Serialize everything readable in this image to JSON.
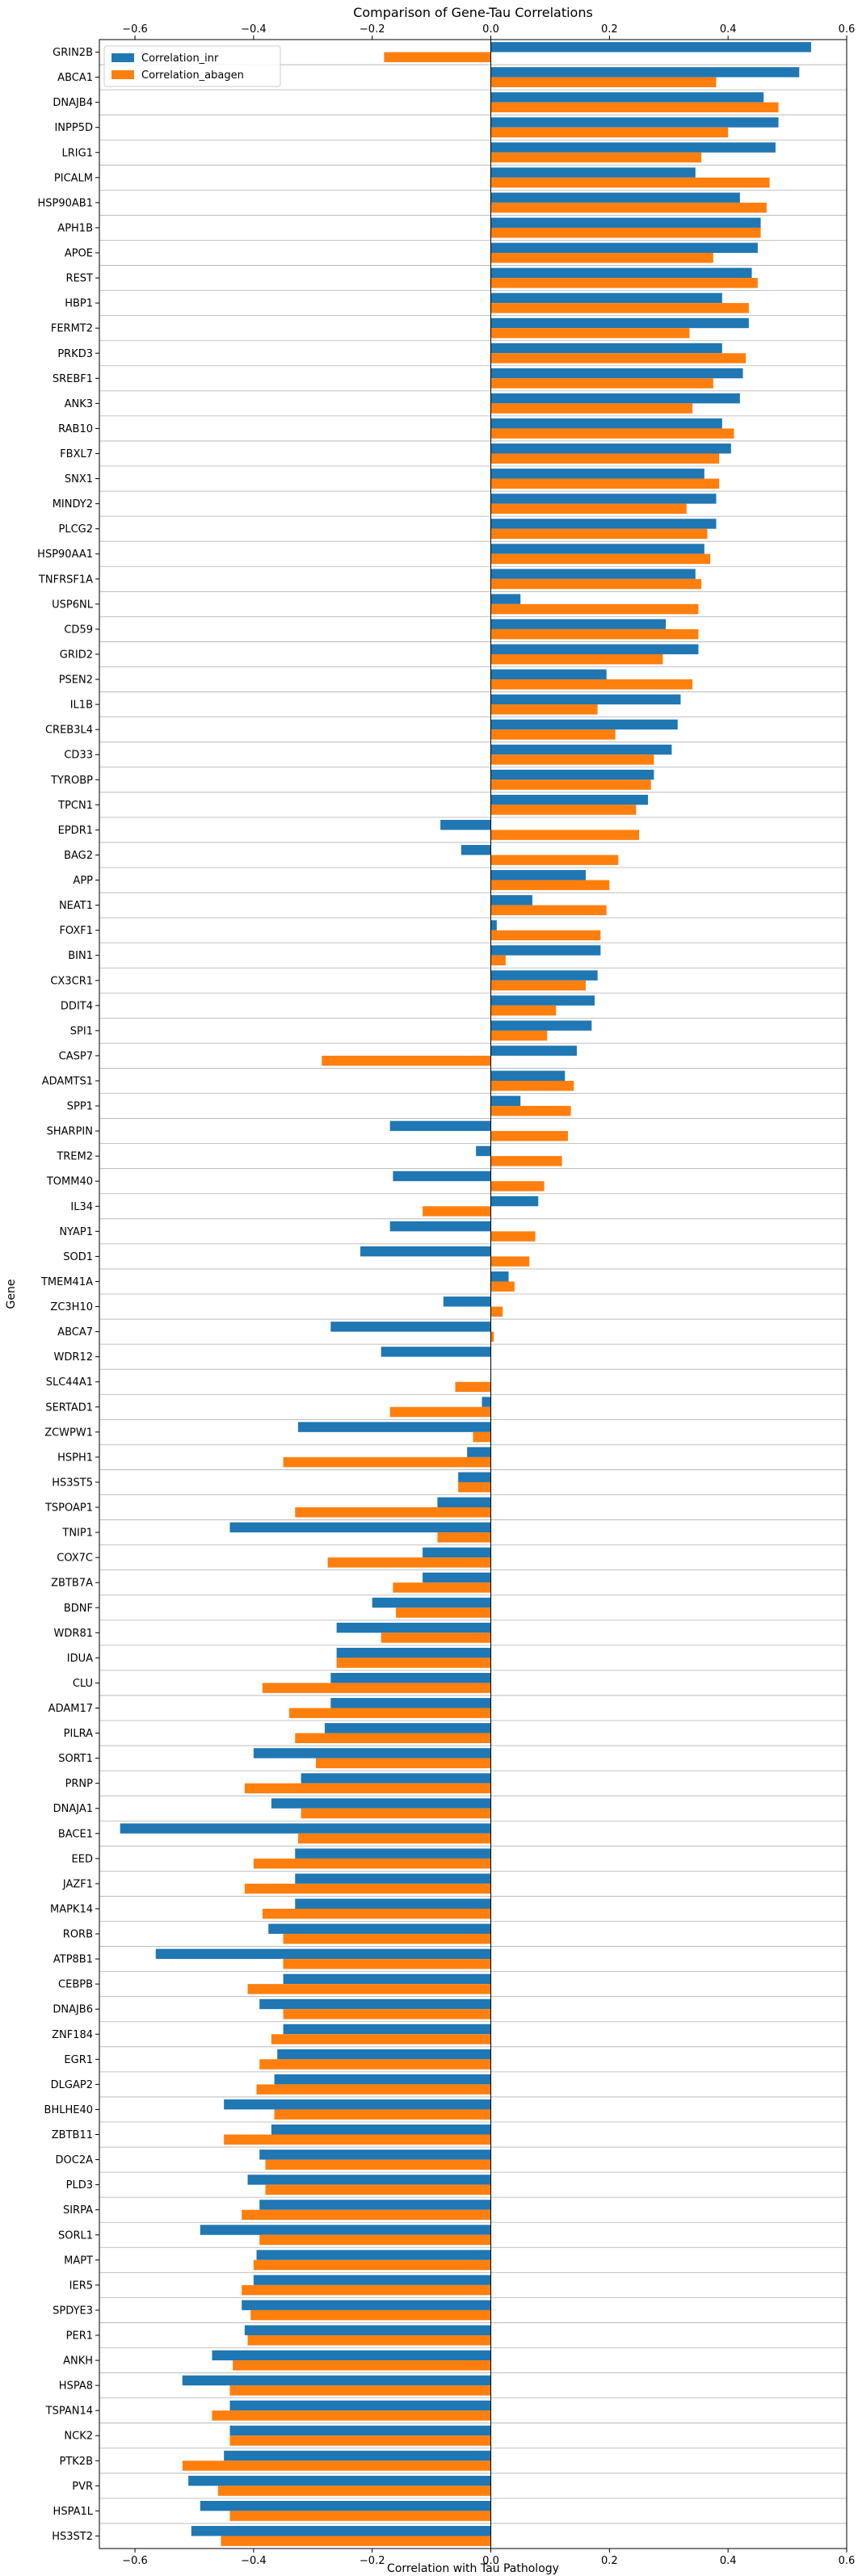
{
  "chart_data": {
    "type": "bar",
    "orientation": "horizontal",
    "title": "Comparison of Gene-Tau Correlations",
    "xlabel": "Correlation with Tau Pathology",
    "ylabel": "Gene",
    "xlim": [
      -0.66,
      0.6
    ],
    "xticks": [
      -0.6,
      -0.4,
      -0.2,
      0.0,
      0.2,
      0.4,
      0.6
    ],
    "xtick_labels": [
      "−0.6",
      "−0.4",
      "−0.2",
      "0.0",
      "0.2",
      "0.4",
      "0.6"
    ],
    "xticks_top_and_bottom": true,
    "legend_position": "top-left",
    "categories": [
      "GRIN2B",
      "ABCA1",
      "DNAJB4",
      "INPP5D",
      "LRIG1",
      "PICALM",
      "HSP90AB1",
      "APH1B",
      "APOE",
      "REST",
      "HBP1",
      "FERMT2",
      "PRKD3",
      "SREBF1",
      "ANK3",
      "RAB10",
      "FBXL7",
      "SNX1",
      "MINDY2",
      "PLCG2",
      "HSP90AA1",
      "TNFRSF1A",
      "USP6NL",
      "CD59",
      "GRID2",
      "PSEN2",
      "IL1B",
      "CREB3L4",
      "CD33",
      "TYROBP",
      "TPCN1",
      "EPDR1",
      "BAG2",
      "APP",
      "NEAT1",
      "FOXF1",
      "BIN1",
      "CX3CR1",
      "DDIT4",
      "SPI1",
      "CASP7",
      "ADAMTS1",
      "SPP1",
      "SHARPIN",
      "TREM2",
      "TOMM40",
      "IL34",
      "NYAP1",
      "SOD1",
      "TMEM41A",
      "ZC3H10",
      "ABCA7",
      "WDR12",
      "SLC44A1",
      "SERTAD1",
      "ZCWPW1",
      "HSPH1",
      "HS3ST5",
      "TSPOAP1",
      "TNIP1",
      "COX7C",
      "ZBTB7A",
      "BDNF",
      "WDR81",
      "IDUA",
      "CLU",
      "ADAM17",
      "PILRA",
      "SORT1",
      "PRNP",
      "DNAJA1",
      "BACE1",
      "EED",
      "JAZF1",
      "MAPK14",
      "RORB",
      "ATP8B1",
      "CEBPB",
      "DNAJB6",
      "ZNF184",
      "EGR1",
      "DLGAP2",
      "BHLHE40",
      "ZBTB11",
      "DOC2A",
      "PLD3",
      "SIRPA",
      "SORL1",
      "MAPT",
      "IER5",
      "SPDYE3",
      "PER1",
      "ANKH",
      "HSPA8",
      "TSPAN14",
      "NCK2",
      "PTK2B",
      "PVR",
      "HSPA1L",
      "HS3ST2"
    ],
    "series": [
      {
        "name": "Correlation_inr",
        "color": "#1f77b4",
        "values": [
          0.54,
          0.52,
          0.46,
          0.485,
          0.48,
          0.345,
          0.42,
          0.455,
          0.45,
          0.44,
          0.39,
          0.435,
          0.39,
          0.425,
          0.42,
          0.39,
          0.405,
          0.36,
          0.38,
          0.38,
          0.36,
          0.345,
          0.05,
          0.295,
          0.35,
          0.195,
          0.32,
          0.315,
          0.305,
          0.275,
          0.265,
          -0.085,
          -0.05,
          0.16,
          0.07,
          0.01,
          0.185,
          0.18,
          0.175,
          0.17,
          0.145,
          0.125,
          0.05,
          -0.17,
          -0.025,
          -0.165,
          0.08,
          -0.17,
          -0.22,
          0.03,
          -0.08,
          -0.27,
          -0.185,
          0.0,
          -0.015,
          -0.325,
          -0.04,
          -0.055,
          -0.09,
          -0.44,
          -0.115,
          -0.115,
          -0.2,
          -0.26,
          -0.26,
          -0.27,
          -0.27,
          -0.28,
          -0.4,
          -0.32,
          -0.37,
          -0.625,
          -0.33,
          -0.33,
          -0.33,
          -0.375,
          -0.565,
          -0.35,
          -0.39,
          -0.35,
          -0.36,
          -0.365,
          -0.45,
          -0.37,
          -0.39,
          -0.41,
          -0.39,
          -0.49,
          -0.395,
          -0.4,
          -0.42,
          -0.415,
          -0.47,
          -0.52,
          -0.44,
          -0.44,
          -0.45,
          -0.51,
          -0.49,
          -0.505
        ]
      },
      {
        "name": "Correlation_abagen",
        "color": "#ff7f0e",
        "values": [
          -0.18,
          0.38,
          0.485,
          0.4,
          0.355,
          0.47,
          0.465,
          0.455,
          0.375,
          0.45,
          0.435,
          0.335,
          0.43,
          0.375,
          0.34,
          0.41,
          0.385,
          0.385,
          0.33,
          0.365,
          0.37,
          0.355,
          0.35,
          0.35,
          0.29,
          0.34,
          0.18,
          0.21,
          0.275,
          0.27,
          0.245,
          0.25,
          0.215,
          0.2,
          0.195,
          0.185,
          0.025,
          0.16,
          0.11,
          0.095,
          -0.285,
          0.14,
          0.135,
          0.13,
          0.12,
          0.09,
          -0.115,
          0.075,
          0.065,
          0.04,
          0.02,
          0.005,
          0.0,
          -0.06,
          -0.17,
          -0.03,
          -0.35,
          -0.055,
          -0.33,
          -0.09,
          -0.275,
          -0.165,
          -0.16,
          -0.185,
          -0.26,
          -0.385,
          -0.34,
          -0.33,
          -0.295,
          -0.415,
          -0.32,
          -0.325,
          -0.4,
          -0.415,
          -0.385,
          -0.35,
          -0.35,
          -0.41,
          -0.35,
          -0.37,
          -0.39,
          -0.395,
          -0.365,
          -0.45,
          -0.38,
          -0.38,
          -0.42,
          -0.39,
          -0.4,
          -0.42,
          -0.405,
          -0.41,
          -0.435,
          -0.44,
          -0.47,
          -0.44,
          -0.52,
          -0.46,
          -0.44,
          -0.455
        ]
      }
    ]
  }
}
